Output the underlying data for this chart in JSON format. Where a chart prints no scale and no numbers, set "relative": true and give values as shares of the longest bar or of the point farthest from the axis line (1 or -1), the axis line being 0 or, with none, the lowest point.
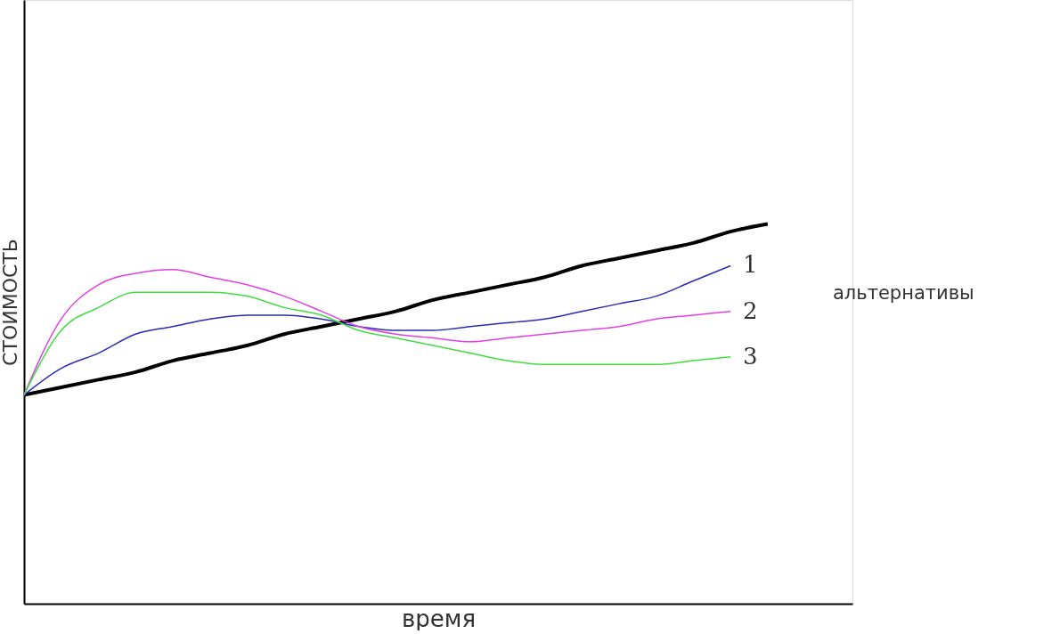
{
  "chart_data": {
    "type": "line",
    "relative": true,
    "xlabel": "время",
    "ylabel": "СТОИМОСТЬ",
    "categories": [
      null,
      null,
      null,
      null,
      null,
      null,
      null,
      null,
      null,
      null,
      null,
      null,
      null,
      null,
      null,
      null,
      null,
      null,
      null,
      null,
      null
    ],
    "series": [
      {
        "color": "#000000",
        "values": [
          0.55,
          0.57,
          0.59,
          0.61,
          0.64,
          0.66,
          0.68,
          0.71,
          0.73,
          0.75,
          0.77,
          0.8,
          0.82,
          0.84,
          0.86,
          0.89,
          0.91,
          0.93,
          0.95,
          0.98,
          1.0
        ]
      },
      {
        "name": "1",
        "color": "#2a2ab8",
        "values": [
          0.55,
          0.62,
          0.66,
          0.71,
          0.73,
          0.75,
          0.76,
          0.76,
          0.75,
          0.73,
          0.72,
          0.72,
          0.73,
          0.74,
          0.75,
          0.77,
          0.79,
          0.81,
          0.85,
          0.89,
          null
        ]
      },
      {
        "name": "2",
        "color": "#e040e0",
        "values": [
          0.55,
          0.75,
          0.84,
          0.87,
          0.88,
          0.86,
          0.84,
          0.81,
          0.77,
          0.73,
          0.71,
          0.7,
          0.69,
          0.7,
          0.71,
          0.72,
          0.73,
          0.75,
          0.76,
          0.77,
          null
        ]
      },
      {
        "name": "3",
        "color": "#40dd40",
        "values": [
          0.55,
          0.72,
          0.78,
          0.82,
          0.82,
          0.82,
          0.81,
          0.78,
          0.76,
          0.72,
          0.7,
          0.68,
          0.66,
          0.64,
          0.63,
          0.63,
          0.63,
          0.63,
          0.64,
          0.65,
          null
        ]
      }
    ],
    "annotations": [
      "альтернативы"
    ],
    "grid": false,
    "legend": false,
    "marker": "none",
    "line_style": "solid"
  }
}
